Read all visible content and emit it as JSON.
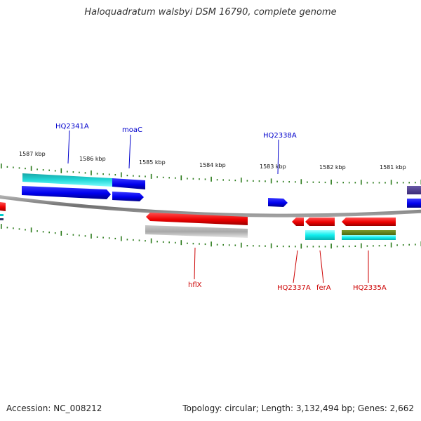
{
  "title": "Haloquadratum walsbyi DSM 16790, complete genome",
  "footer": {
    "accession": "Accession: NC_008212",
    "summary": "Topology: circular; Length: 3,132,494 bp; Genes: 2,662"
  },
  "colors": {
    "forward_label": "#0000cc",
    "reverse_label": "#cc0000",
    "tick": "#2a7a1a",
    "backbone": "#808080"
  },
  "scale_labels": [
    "1587 kbp",
    "1586 kbp",
    "1585 kbp",
    "1584 kbp",
    "1583 kbp",
    "1582 kbp",
    "1581 kbp"
  ],
  "gene_labels": {
    "top": [
      "HQ2341A",
      "moaC",
      "HQ2338A"
    ],
    "bottom": [
      "hflX",
      "HQ2337A",
      "ferA",
      "HQ2335A"
    ]
  }
}
